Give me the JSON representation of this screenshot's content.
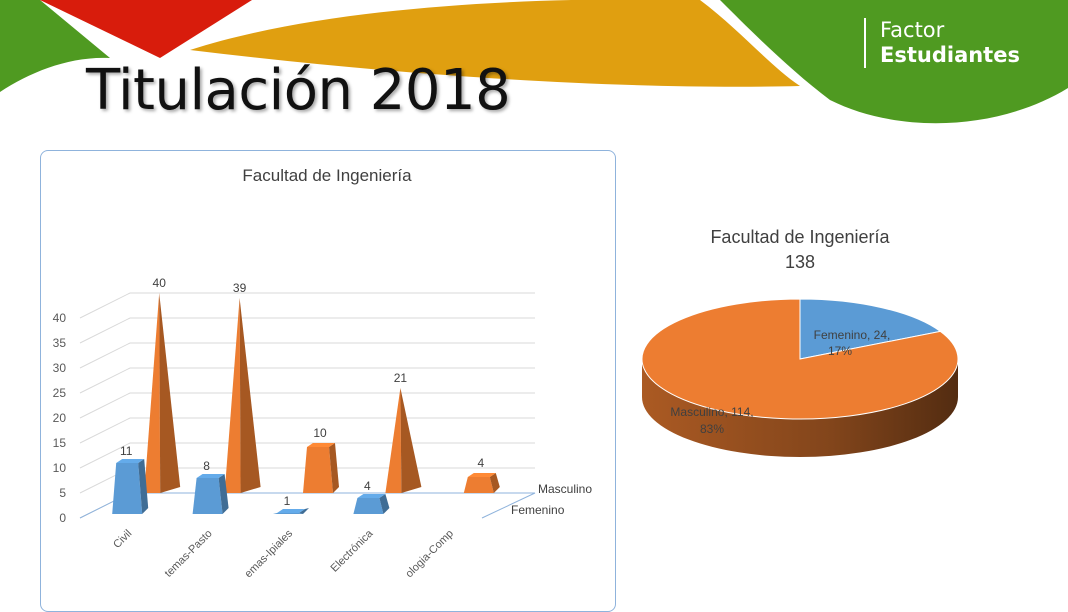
{
  "slide": {
    "title": "Titulación 2018",
    "brand_line1": "Factor",
    "brand_line2": "Estudiantes"
  },
  "colors": {
    "femenino": "#5b9bd5",
    "masculino": "#ed7d31",
    "deco_green": "#4f9a21",
    "deco_red": "#d81c0c",
    "deco_yellow": "#e09f10",
    "chart_border": "#8fb3dc"
  },
  "chart_data": [
    {
      "type": "bar",
      "style": "3d-pyramid",
      "title": "Facultad de Ingeniería",
      "categories": [
        "Civil",
        "Sistemas-Pasto",
        "Sistemas-Ipiales",
        "Electrónica",
        "Tecnologia-Comp"
      ],
      "tick_labels": [
        "Civil",
        "temas-Pasto",
        "emas-Ipiales",
        "Electrónica",
        "ologia-Comp"
      ],
      "series": [
        {
          "name": "Femenino",
          "values": [
            11,
            8,
            1,
            4,
            null
          ]
        },
        {
          "name": "Masculino",
          "values": [
            40,
            39,
            10,
            21,
            4
          ]
        }
      ],
      "ylim": [
        0,
        40
      ],
      "yticks": [
        0,
        5,
        10,
        15,
        20,
        25,
        30,
        35,
        40
      ],
      "grid": true
    },
    {
      "type": "pie",
      "style": "3d",
      "title": "Facultad de Ingeniería",
      "subtitle": "138",
      "slices": [
        {
          "name": "Femenino",
          "value": 24,
          "label": "Femenino, 24,",
          "percent_label": "17%"
        },
        {
          "name": "Masculino",
          "value": 114,
          "label": "Masculino, 114,",
          "percent_label": "83%"
        }
      ]
    }
  ]
}
